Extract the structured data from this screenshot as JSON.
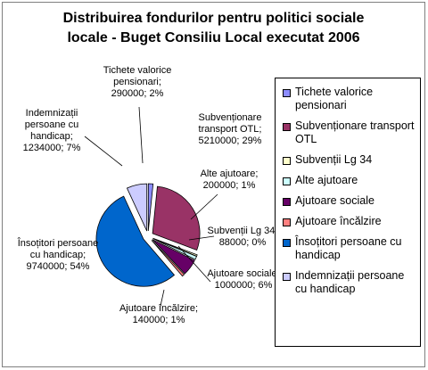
{
  "chart_data": {
    "type": "pie",
    "title_lines": [
      "Distribuirea fondurilor pentru politici sociale",
      "locale - Buget Consiliu Local executat 2006"
    ],
    "categories": [
      "Tichete valorice pensionari",
      "Subvenționare transport OTL",
      "Subvenții Lg 34",
      "Alte ajutoare",
      "Ajutoare sociale",
      "Ajutoare încălzire",
      "Însoțitori persoane cu handicap",
      "Indemnizații persoane cu handicap"
    ],
    "values": [
      290000,
      5210000,
      88000,
      200000,
      1000000,
      140000,
      9740000,
      1234000
    ],
    "percents": [
      "2%",
      "29%",
      "0%",
      "1%",
      "6%",
      "1%",
      "54%",
      "7%"
    ],
    "colors": [
      "#8c8cff",
      "#993366",
      "#ffffcc",
      "#ccffff",
      "#660066",
      "#ff8080",
      "#0066cc",
      "#ccccff"
    ],
    "data_labels": [
      [
        "Tichete valorice",
        "pensionari;",
        "290000; 2%"
      ],
      [
        "Subvenționare",
        "transport OTL;",
        "5210000; 29%"
      ],
      [
        "Subvenții Lg 34;",
        "88000; 0%"
      ],
      [
        "Alte ajutoare;",
        "200000; 1%"
      ],
      [
        "Ajutoare sociale;",
        "1000000; 6%"
      ],
      [
        "Ajutoare încălzire;",
        "140000; 1%"
      ],
      [
        "Însoțitori persoane",
        "cu handicap;",
        "9740000; 54%"
      ],
      [
        "Indemnizații",
        "persoane cu",
        "handicap;",
        "1234000; 7%"
      ]
    ],
    "legend_lines": [
      [
        "Tichete valorice",
        "pensionari"
      ],
      [
        "Subvenționare transport",
        "OTL"
      ],
      [
        "Subvenții Lg 34"
      ],
      [
        "Alte ajutoare"
      ],
      [
        "Ajutoare sociale"
      ],
      [
        "Ajutoare încălzire"
      ],
      [
        "Însoțitori persoane cu",
        "handicap"
      ],
      [
        "Indemnizații persoane",
        "cu handicap"
      ]
    ],
    "legend_position": "right",
    "exploded": true
  }
}
